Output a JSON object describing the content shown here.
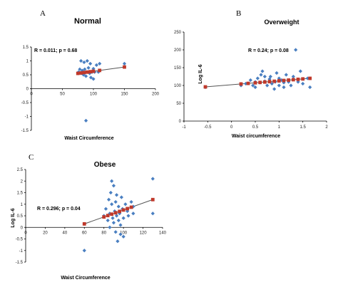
{
  "chart_data": [
    {
      "type": "scatter",
      "panel_letter": "A",
      "title": "Normal",
      "xlabel": "Waist Circumference",
      "ylabel": "",
      "annotation": "R = 0.011; p = 0.68",
      "xlim": [
        0,
        200
      ],
      "ylim": [
        -1.5,
        1.5
      ],
      "xticks": [
        0,
        50,
        100,
        150,
        200
      ],
      "yticks": [
        1.5,
        1,
        0.5,
        0,
        -0.5,
        -1,
        -1.5
      ],
      "points": [
        [
          80,
          1.0
        ],
        [
          85,
          0.95
        ],
        [
          90,
          1.0
        ],
        [
          95,
          0.9
        ],
        [
          78,
          0.7
        ],
        [
          82,
          0.65
        ],
        [
          86,
          0.7
        ],
        [
          92,
          0.75
        ],
        [
          100,
          0.72
        ],
        [
          105,
          0.85
        ],
        [
          110,
          0.9
        ],
        [
          150,
          0.9
        ],
        [
          80,
          0.55
        ],
        [
          84,
          0.5
        ],
        [
          88,
          0.45
        ],
        [
          90,
          0.6
        ],
        [
          94,
          0.55
        ],
        [
          96,
          0.4
        ],
        [
          100,
          0.35
        ],
        [
          98,
          0.6
        ],
        [
          102,
          0.6
        ],
        [
          76,
          0.6
        ],
        [
          108,
          0.6
        ],
        [
          88,
          -1.15
        ]
      ],
      "fit": [
        [
          75,
          0.55
        ],
        [
          150,
          0.78
        ]
      ],
      "fit_markers": [
        75,
        80,
        85,
        90,
        95,
        100,
        110,
        150
      ]
    },
    {
      "type": "scatter",
      "panel_letter": "B",
      "title": "Overweight",
      "xlabel": "Waist circumference",
      "ylabel": "Log IL-6",
      "annotation": "R = 0.24; p = 0.08",
      "xlim": [
        -1,
        2
      ],
      "ylim": [
        0,
        250
      ],
      "xticks": [
        -1,
        -0.5,
        0,
        0.5,
        1,
        1.5,
        2
      ],
      "yticks": [
        250,
        200,
        150,
        100,
        50,
        0
      ],
      "points": [
        [
          -0.55,
          95
        ],
        [
          0.2,
          100
        ],
        [
          0.3,
          105
        ],
        [
          0.4,
          115
        ],
        [
          0.45,
          100
        ],
        [
          0.5,
          110
        ],
        [
          0.55,
          120
        ],
        [
          0.6,
          108
        ],
        [
          0.62,
          130
        ],
        [
          0.65,
          140
        ],
        [
          0.7,
          112
        ],
        [
          0.75,
          100
        ],
        [
          0.8,
          118
        ],
        [
          0.82,
          125
        ],
        [
          0.85,
          105
        ],
        [
          0.9,
          90
        ],
        [
          0.92,
          110
        ],
        [
          0.95,
          135
        ],
        [
          1.0,
          100
        ],
        [
          1.0,
          120
        ],
        [
          1.05,
          115
        ],
        [
          1.1,
          95
        ],
        [
          1.15,
          130
        ],
        [
          1.2,
          110
        ],
        [
          1.25,
          100
        ],
        [
          1.3,
          125
        ],
        [
          1.35,
          200
        ],
        [
          1.4,
          110
        ],
        [
          1.45,
          140
        ],
        [
          1.5,
          105
        ],
        [
          1.6,
          120
        ],
        [
          1.65,
          95
        ],
        [
          0.5,
          95
        ],
        [
          0.7,
          125
        ],
        [
          1.1,
          108
        ]
      ],
      "fit": [
        [
          -0.55,
          96
        ],
        [
          1.65,
          120
        ]
      ],
      "fit_markers": [
        -0.55,
        0.2,
        0.35,
        0.5,
        0.6,
        0.7,
        0.8,
        0.9,
        1.0,
        1.1,
        1.2,
        1.3,
        1.4,
        1.5,
        1.65
      ]
    },
    {
      "type": "scatter",
      "panel_letter": "C",
      "title": "Obese",
      "xlabel": "Waist Circumference",
      "ylabel": "Log IL-6",
      "annotation": "R = 0.296; p = 0.04",
      "xlim": [
        0,
        140
      ],
      "ylim": [
        -1.5,
        2.5
      ],
      "xticks": [
        0,
        20,
        40,
        60,
        80,
        100,
        120,
        140
      ],
      "yticks": [
        2.5,
        2,
        1.5,
        1,
        0.5,
        0,
        -0.5,
        -1,
        -1.5
      ],
      "points": [
        [
          60,
          -1.0
        ],
        [
          60,
          0.15
        ],
        [
          80,
          0.5
        ],
        [
          82,
          0.8
        ],
        [
          84,
          0.3
        ],
        [
          85,
          1.2
        ],
        [
          86,
          0.6
        ],
        [
          87,
          1.5
        ],
        [
          88,
          2.0
        ],
        [
          88,
          1.0
        ],
        [
          89,
          0.4
        ],
        [
          90,
          1.8
        ],
        [
          90,
          0.2
        ],
        [
          91,
          0.7
        ],
        [
          92,
          -0.2
        ],
        [
          92,
          1.1
        ],
        [
          93,
          0.5
        ],
        [
          94,
          -0.6
        ],
        [
          95,
          0.9
        ],
        [
          95,
          0.3
        ],
        [
          96,
          0.6
        ],
        [
          97,
          -0.3
        ],
        [
          98,
          1.3
        ],
        [
          99,
          0.8
        ],
        [
          100,
          0.4
        ],
        [
          100,
          -0.4
        ],
        [
          102,
          1.0
        ],
        [
          104,
          0.7
        ],
        [
          105,
          0.5
        ],
        [
          108,
          1.1
        ],
        [
          110,
          0.9
        ],
        [
          110,
          0.6
        ],
        [
          130,
          2.1
        ],
        [
          130,
          0.6
        ],
        [
          86,
          0.0
        ],
        [
          93,
          1.4
        ],
        [
          97,
          0.1
        ]
      ],
      "fit": [
        [
          60,
          0.15
        ],
        [
          130,
          1.2
        ]
      ],
      "fit_markers": [
        60,
        80,
        84,
        88,
        92,
        96,
        100,
        104,
        108,
        130
      ]
    }
  ],
  "colors": {
    "point": "#4a7fc1",
    "fit_marker": "#c0392b",
    "fit_line": "#555555"
  }
}
